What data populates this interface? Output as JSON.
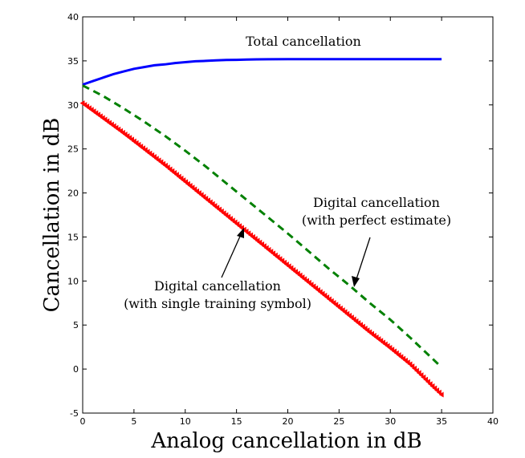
{
  "chart_data": {
    "type": "line",
    "title": "",
    "xlabel": "Analog cancellation in dB",
    "ylabel": "Cancellation in dB",
    "xlim": [
      0,
      40
    ],
    "ylim": [
      -5,
      40
    ],
    "xticks": [
      0,
      5,
      10,
      15,
      20,
      25,
      30,
      35,
      40
    ],
    "yticks": [
      -5,
      0,
      5,
      10,
      15,
      20,
      25,
      30,
      35,
      40
    ],
    "grid": false,
    "series": [
      {
        "key": "total",
        "color": "#0000ff",
        "style": "solid",
        "marker": "none",
        "x": [
          0,
          1,
          2,
          3,
          4,
          5,
          6,
          7,
          8,
          9,
          10,
          11,
          12,
          13,
          14,
          15,
          16,
          17,
          18,
          20,
          25,
          30,
          35
        ],
        "y": [
          32.3,
          32.7,
          33.1,
          33.5,
          33.8,
          34.1,
          34.3,
          34.5,
          34.6,
          34.75,
          34.85,
          34.95,
          35.0,
          35.05,
          35.1,
          35.12,
          35.15,
          35.17,
          35.18,
          35.2,
          35.2,
          35.2,
          35.2
        ]
      },
      {
        "key": "perfect",
        "color": "#008000",
        "style": "dashed",
        "marker": "none",
        "x": [
          0,
          2,
          4,
          6,
          8,
          10,
          12,
          14,
          16,
          18,
          20,
          22,
          24,
          26,
          28,
          30,
          32,
          34,
          35
        ],
        "y": [
          32.2,
          31.0,
          29.6,
          28.1,
          26.5,
          24.8,
          23.0,
          21.1,
          19.2,
          17.3,
          15.4,
          13.4,
          11.4,
          9.5,
          7.5,
          5.6,
          3.5,
          1.3,
          0.2
        ]
      },
      {
        "key": "single",
        "color": "#ff0000",
        "style": "dotted",
        "marker": "triangle",
        "x": [
          0,
          2,
          4,
          6,
          8,
          10,
          12,
          14,
          16,
          18,
          20,
          22,
          24,
          26,
          28,
          30,
          32,
          34,
          35
        ],
        "y": [
          30.2,
          28.5,
          26.8,
          25.0,
          23.2,
          21.3,
          19.4,
          17.5,
          15.6,
          13.7,
          11.8,
          9.9,
          8.0,
          6.1,
          4.2,
          2.4,
          0.5,
          -1.8,
          -2.9
        ]
      }
    ],
    "annotations": [
      {
        "key": "total",
        "lines": [
          "Total cancellation"
        ]
      },
      {
        "key": "perfect",
        "lines": [
          "Digital cancellation",
          "(with perfect estimate)"
        ]
      },
      {
        "key": "single",
        "lines": [
          "Digital cancellation",
          "(with single training symbol)"
        ]
      }
    ]
  }
}
